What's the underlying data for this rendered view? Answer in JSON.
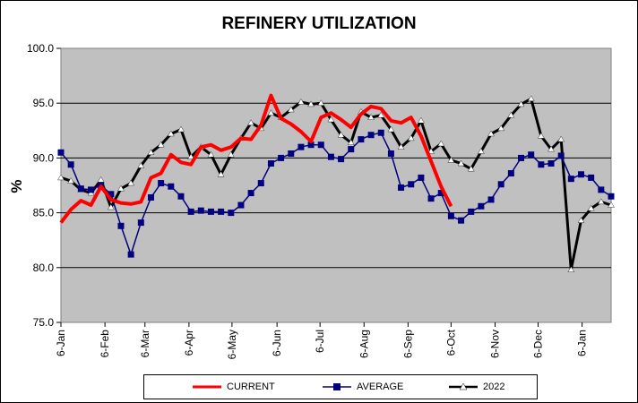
{
  "chart_data": {
    "type": "line",
    "title": "REFINERY UTILIZATION",
    "xlabel": "",
    "ylabel": "%",
    "ylim": [
      75.0,
      100.0
    ],
    "yticks": [
      "75.0",
      "80.0",
      "85.0",
      "90.0",
      "95.0",
      "100.0"
    ],
    "xticks": [
      {
        "label": "6-Jan",
        "week": 0
      },
      {
        "label": "6-Feb",
        "week": 4.4
      },
      {
        "label": "6-Mar",
        "week": 8.4
      },
      {
        "label": "6-Apr",
        "week": 12.8
      },
      {
        "label": "6-May",
        "week": 17.1
      },
      {
        "label": "6-Jun",
        "week": 21.6
      },
      {
        "label": "6-Jul",
        "week": 25.9
      },
      {
        "label": "6-Aug",
        "week": 30.3
      },
      {
        "label": "6-Sep",
        "week": 34.7
      },
      {
        "label": "6-Oct",
        "week": 39
      },
      {
        "label": "6-Nov",
        "week": 43.4
      },
      {
        "label": "6-Dec",
        "week": 47.7
      },
      {
        "label": "6-Jan",
        "week": 52.1
      }
    ],
    "x_unit": "weeks from 6-Jan",
    "grid": true,
    "legend_position": "bottom",
    "series": [
      {
        "name": "CURRENT",
        "color": "#ff0000",
        "marker": "none",
        "values": [
          84.1,
          85.3,
          86.1,
          85.7,
          87.4,
          86.2,
          85.9,
          85.8,
          86.0,
          88.2,
          88.6,
          90.3,
          89.6,
          89.4,
          91.0,
          91.2,
          90.7,
          91.0,
          91.8,
          91.7,
          93.0,
          95.7,
          93.6,
          93.1,
          92.4,
          91.5,
          93.7,
          94.1,
          93.5,
          92.8,
          94.0,
          94.7,
          94.5,
          93.4,
          93.2,
          93.7,
          92.0,
          89.7,
          87.4,
          85.6
        ]
      },
      {
        "name": "AVERAGE",
        "color": "#000080",
        "marker": "square",
        "values": [
          90.5,
          89.4,
          87.2,
          87.1,
          87.5,
          86.7,
          83.8,
          81.2,
          84.1,
          86.4,
          87.7,
          87.4,
          86.5,
          85.1,
          85.2,
          85.1,
          85.1,
          85.0,
          85.7,
          86.8,
          87.7,
          89.5,
          90.0,
          90.4,
          91.0,
          91.2,
          91.2,
          90.1,
          89.9,
          90.8,
          91.7,
          92.1,
          92.3,
          90.4,
          87.3,
          87.6,
          88.2,
          86.3,
          86.8,
          84.7,
          84.3,
          85.1,
          85.6,
          86.2,
          87.6,
          88.6,
          90.0,
          90.3,
          89.4,
          89.5,
          90.2,
          88.1,
          88.5,
          88.2,
          87.1,
          86.5
        ]
      },
      {
        "name": "2022",
        "color": "#000000",
        "marker": "triangle",
        "values": [
          88.2,
          87.9,
          87.1,
          86.8,
          88.0,
          85.5,
          87.2,
          87.7,
          89.3,
          90.5,
          91.2,
          92.2,
          92.6,
          90.1,
          91.0,
          90.3,
          88.5,
          90.3,
          91.8,
          93.2,
          92.7,
          94.1,
          93.7,
          94.4,
          95.1,
          94.9,
          95.0,
          93.5,
          92.1,
          91.4,
          94.2,
          93.7,
          93.9,
          92.6,
          91.0,
          91.8,
          93.4,
          90.6,
          91.3,
          89.8,
          89.5,
          89.0,
          90.6,
          92.2,
          92.7,
          93.9,
          94.9,
          95.4,
          92.0,
          90.8,
          91.7,
          79.8,
          84.3,
          85.4,
          86.0,
          85.7
        ]
      }
    ]
  }
}
